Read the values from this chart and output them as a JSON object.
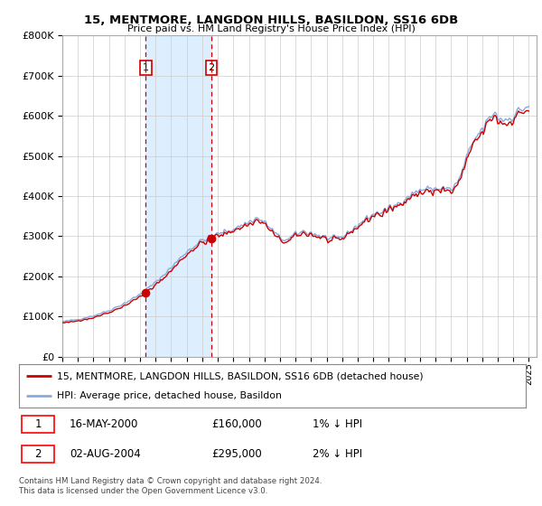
{
  "title": "15, MENTMORE, LANGDON HILLS, BASILDON, SS16 6DB",
  "subtitle": "Price paid vs. HM Land Registry's House Price Index (HPI)",
  "legend_property": "15, MENTMORE, LANGDON HILLS, BASILDON, SS16 6DB (detached house)",
  "legend_hpi": "HPI: Average price, detached house, Basildon",
  "transaction1_date": "16-MAY-2000",
  "transaction1_price": 160000,
  "transaction1_year": 2000.37,
  "transaction2_date": "02-AUG-2004",
  "transaction2_price": 295000,
  "transaction2_year": 2004.58,
  "footnote1": "Contains HM Land Registry data © Crown copyright and database right 2024.",
  "footnote2": "This data is licensed under the Open Government Licence v3.0.",
  "ylim": [
    0,
    800000
  ],
  "yticks": [
    0,
    100000,
    200000,
    300000,
    400000,
    500000,
    600000,
    700000,
    800000
  ],
  "xlim_start": 1995.0,
  "xlim_end": 2025.5,
  "property_color": "#cc0000",
  "hpi_color": "#88aadd",
  "vline_color": "#cc0000",
  "shade_color": "#ddeeff",
  "background_color": "#ffffff",
  "grid_color": "#cccccc"
}
